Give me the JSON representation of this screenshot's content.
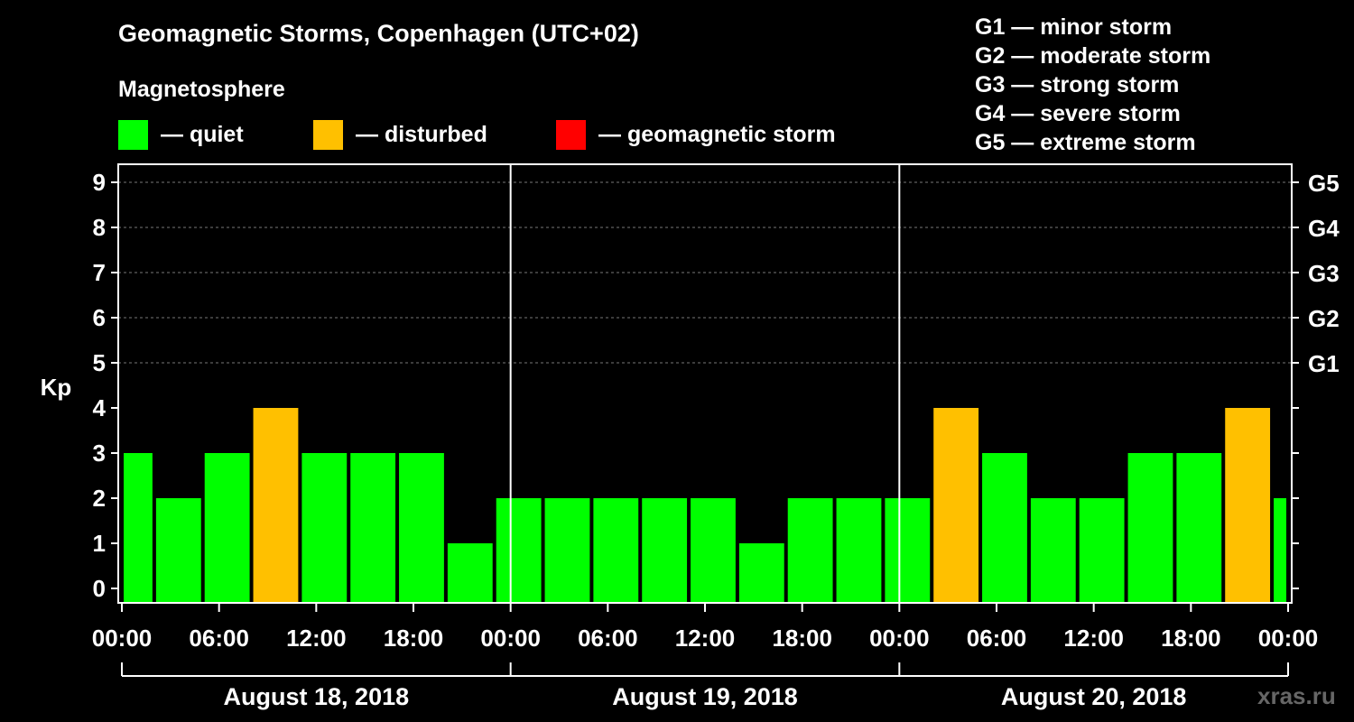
{
  "header": {
    "title": "Geomagnetic Storms, Copenhagen (UTC+02)",
    "subtitle": "Magnetosphere"
  },
  "legend": [
    {
      "label": "— quiet",
      "color": "#00ff00"
    },
    {
      "label": "— disturbed",
      "color": "#ffc000"
    },
    {
      "label": "— geomagnetic storm",
      "color": "#ff0000"
    }
  ],
  "storm_levels": [
    "G1 — minor storm",
    "G2 — moderate storm",
    "G3 — strong storm",
    "G4 — severe storm",
    "G5 — extreme storm"
  ],
  "watermark": "xras.ru",
  "chart_data": {
    "type": "bar",
    "title": "Geomagnetic Storms, Copenhagen (UTC+02)",
    "ylabel": "Kp",
    "ylim": [
      0,
      9
    ],
    "yticks": [
      "0",
      "1",
      "2",
      "3",
      "4",
      "5",
      "6",
      "7",
      "8",
      "9"
    ],
    "right_ticks": [
      {
        "kp": 5,
        "label": "G1"
      },
      {
        "kp": 6,
        "label": "G2"
      },
      {
        "kp": 7,
        "label": "G3"
      },
      {
        "kp": 8,
        "label": "G4"
      },
      {
        "kp": 9,
        "label": "G5"
      }
    ],
    "xlim_hours": [
      0,
      72
    ],
    "x_tick_hours": [
      0,
      6,
      12,
      18,
      24,
      30,
      36,
      42,
      48,
      54,
      60,
      66,
      72
    ],
    "x_tick_labels": [
      "00:00",
      "06:00",
      "12:00",
      "18:00",
      "00:00",
      "06:00",
      "12:00",
      "18:00",
      "00:00",
      "06:00",
      "12:00",
      "18:00",
      "00:00"
    ],
    "day_separators_hours": [
      24,
      48
    ],
    "days": [
      {
        "label": "August 18, 2018",
        "start_hour": 0,
        "end_hour": 24
      },
      {
        "label": "August 19, 2018",
        "start_hour": 24,
        "end_hour": 48
      },
      {
        "label": "August 20, 2018",
        "start_hour": 48,
        "end_hour": 72
      }
    ],
    "colors": {
      "quiet": "#00ff00",
      "disturbed": "#ffc000",
      "storm": "#ff0000"
    },
    "bars": [
      {
        "start": 0,
        "end": 2,
        "kp": 3,
        "status": "quiet"
      },
      {
        "start": 2,
        "end": 5,
        "kp": 2,
        "status": "quiet"
      },
      {
        "start": 5,
        "end": 8,
        "kp": 3,
        "status": "quiet"
      },
      {
        "start": 8,
        "end": 11,
        "kp": 4,
        "status": "disturbed"
      },
      {
        "start": 11,
        "end": 14,
        "kp": 3,
        "status": "quiet"
      },
      {
        "start": 14,
        "end": 17,
        "kp": 3,
        "status": "quiet"
      },
      {
        "start": 17,
        "end": 20,
        "kp": 3,
        "status": "quiet"
      },
      {
        "start": 20,
        "end": 23,
        "kp": 1,
        "status": "quiet"
      },
      {
        "start": 23,
        "end": 26,
        "kp": 2,
        "status": "quiet"
      },
      {
        "start": 26,
        "end": 29,
        "kp": 2,
        "status": "quiet"
      },
      {
        "start": 29,
        "end": 32,
        "kp": 2,
        "status": "quiet"
      },
      {
        "start": 32,
        "end": 35,
        "kp": 2,
        "status": "quiet"
      },
      {
        "start": 35,
        "end": 38,
        "kp": 2,
        "status": "quiet"
      },
      {
        "start": 38,
        "end": 41,
        "kp": 1,
        "status": "quiet"
      },
      {
        "start": 41,
        "end": 44,
        "kp": 2,
        "status": "quiet"
      },
      {
        "start": 44,
        "end": 47,
        "kp": 2,
        "status": "quiet"
      },
      {
        "start": 47,
        "end": 50,
        "kp": 2,
        "status": "quiet"
      },
      {
        "start": 50,
        "end": 53,
        "kp": 4,
        "status": "disturbed"
      },
      {
        "start": 53,
        "end": 56,
        "kp": 3,
        "status": "quiet"
      },
      {
        "start": 56,
        "end": 59,
        "kp": 2,
        "status": "quiet"
      },
      {
        "start": 59,
        "end": 62,
        "kp": 2,
        "status": "quiet"
      },
      {
        "start": 62,
        "end": 65,
        "kp": 3,
        "status": "quiet"
      },
      {
        "start": 65,
        "end": 68,
        "kp": 3,
        "status": "quiet"
      },
      {
        "start": 68,
        "end": 71,
        "kp": 4,
        "status": "disturbed"
      },
      {
        "start": 71,
        "end": 72,
        "kp": 2,
        "status": "quiet"
      }
    ]
  }
}
